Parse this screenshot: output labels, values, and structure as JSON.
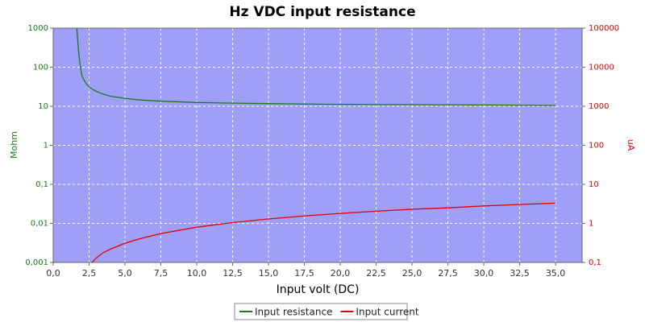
{
  "chart_data": {
    "type": "line",
    "title": "Hz VDC input resistance",
    "x_label": "Input volt (DC)",
    "y_label": "Mohm",
    "y2_label": "uA",
    "xlim": [
      0,
      36.85
    ],
    "xticks": [
      {
        "value": 0,
        "label": "0,0"
      },
      {
        "value": 2.5,
        "label": "2,5"
      },
      {
        "value": 5,
        "label": "5,0"
      },
      {
        "value": 7.5,
        "label": "7,5"
      },
      {
        "value": 10,
        "label": "10,0"
      },
      {
        "value": 12.5,
        "label": "12,5"
      },
      {
        "value": 15,
        "label": "15,0"
      },
      {
        "value": 17.5,
        "label": "17,5"
      },
      {
        "value": 20,
        "label": "20,0"
      },
      {
        "value": 22.5,
        "label": "22,5"
      },
      {
        "value": 25,
        "label": "25,0"
      },
      {
        "value": 27.5,
        "label": "27,5"
      },
      {
        "value": 30,
        "label": "30,0"
      },
      {
        "value": 32.5,
        "label": "32,5"
      },
      {
        "value": 35,
        "label": "35,0"
      }
    ],
    "ylim": [
      0.001,
      1000
    ],
    "yticks": [
      {
        "value": 0.001,
        "label": "0,001"
      },
      {
        "value": 0.01,
        "label": "0,01"
      },
      {
        "value": 0.1,
        "label": "0,1"
      },
      1,
      10,
      100,
      1000
    ],
    "y2lim": [
      0.1,
      100000
    ],
    "y2ticks": [
      {
        "value": 0.1,
        "label": "0,1"
      },
      1,
      10,
      100,
      1000,
      10000,
      100000
    ],
    "log_y": true,
    "grid": true,
    "legend": "bottom",
    "series": [
      {
        "name": "Input resistance",
        "color": "#1a7a1a",
        "x": [
          1.65,
          1.75,
          1.85,
          2.0,
          2.25,
          2.5,
          3.0,
          3.5,
          4.0,
          5.0,
          6.0,
          7.5,
          10.0,
          12.5,
          15.0,
          17.5,
          20.0,
          25.0,
          30.0,
          35.0
        ],
        "values": [
          1000,
          300,
          130,
          60,
          40,
          31,
          24,
          20.5,
          18,
          16,
          14.5,
          13.5,
          12.5,
          12,
          11.7,
          11.4,
          11.2,
          11,
          10.8,
          10.5
        ]
      },
      {
        "name": "Input current",
        "color": "#e00000",
        "axis": "y2",
        "x": [
          2.7,
          3.0,
          3.5,
          4.0,
          5.0,
          6.0,
          7.5,
          10.0,
          12.5,
          15.0,
          17.5,
          20.0,
          22.5,
          25.0,
          27.5,
          30.0,
          32.5,
          35.0
        ],
        "values": [
          0.1,
          0.13,
          0.18,
          0.22,
          0.31,
          0.4,
          0.55,
          0.8,
          1.05,
          1.3,
          1.55,
          1.8,
          2.05,
          2.3,
          2.5,
          2.8,
          3.05,
          3.3
        ]
      }
    ]
  }
}
